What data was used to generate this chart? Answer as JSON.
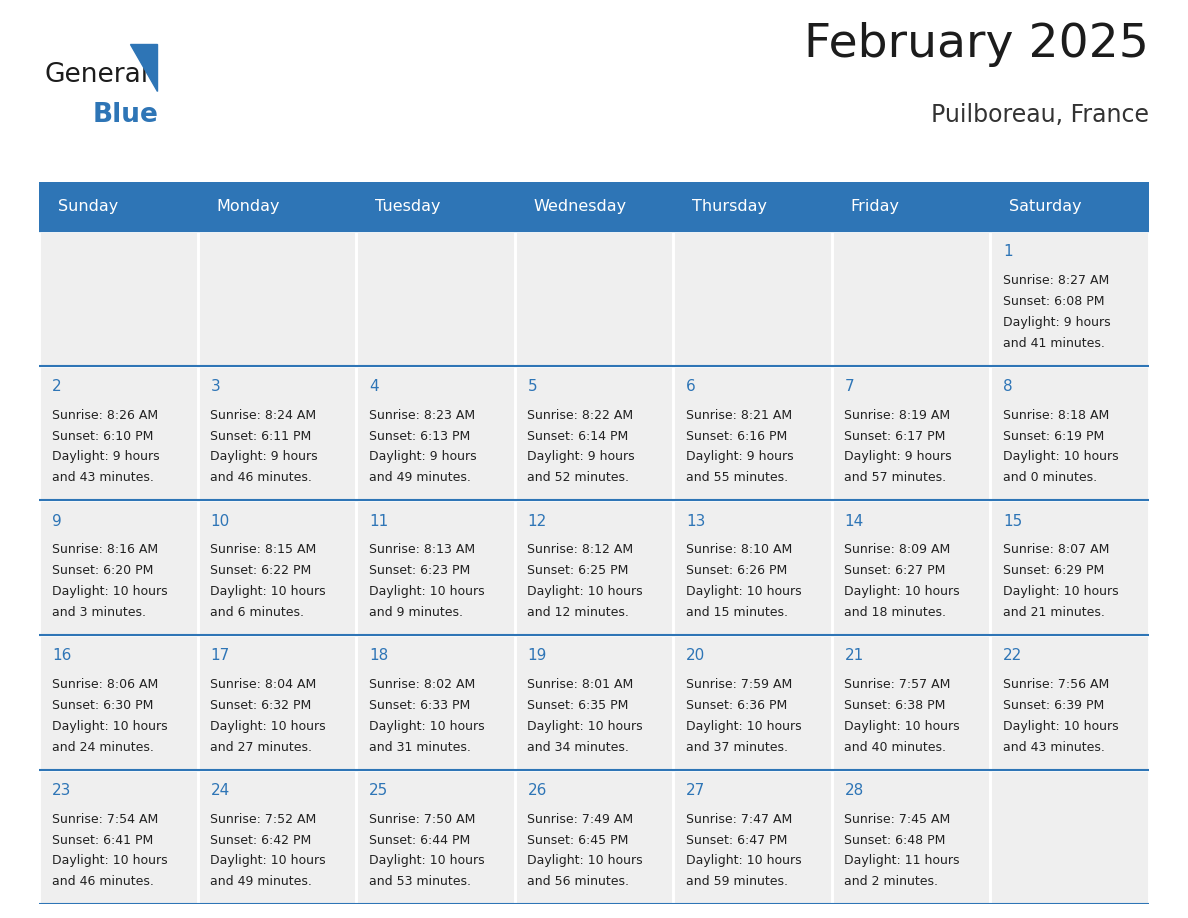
{
  "title": "February 2025",
  "subtitle": "Puilboreau, France",
  "days_of_week": [
    "Sunday",
    "Monday",
    "Tuesday",
    "Wednesday",
    "Thursday",
    "Friday",
    "Saturday"
  ],
  "header_bg_color": "#2e75b6",
  "header_text_color": "#ffffff",
  "cell_bg_color": "#efefef",
  "day_number_color": "#2e75b6",
  "text_color": "#222222",
  "line_color": "#2e75b6",
  "bg_color": "#ffffff",
  "calendar_data": [
    [
      null,
      null,
      null,
      null,
      null,
      null,
      {
        "day": 1,
        "sunrise": "8:27 AM",
        "sunset": "6:08 PM",
        "daylight_l1": "Daylight: 9 hours",
        "daylight_l2": "and 41 minutes."
      }
    ],
    [
      {
        "day": 2,
        "sunrise": "8:26 AM",
        "sunset": "6:10 PM",
        "daylight_l1": "Daylight: 9 hours",
        "daylight_l2": "and 43 minutes."
      },
      {
        "day": 3,
        "sunrise": "8:24 AM",
        "sunset": "6:11 PM",
        "daylight_l1": "Daylight: 9 hours",
        "daylight_l2": "and 46 minutes."
      },
      {
        "day": 4,
        "sunrise": "8:23 AM",
        "sunset": "6:13 PM",
        "daylight_l1": "Daylight: 9 hours",
        "daylight_l2": "and 49 minutes."
      },
      {
        "day": 5,
        "sunrise": "8:22 AM",
        "sunset": "6:14 PM",
        "daylight_l1": "Daylight: 9 hours",
        "daylight_l2": "and 52 minutes."
      },
      {
        "day": 6,
        "sunrise": "8:21 AM",
        "sunset": "6:16 PM",
        "daylight_l1": "Daylight: 9 hours",
        "daylight_l2": "and 55 minutes."
      },
      {
        "day": 7,
        "sunrise": "8:19 AM",
        "sunset": "6:17 PM",
        "daylight_l1": "Daylight: 9 hours",
        "daylight_l2": "and 57 minutes."
      },
      {
        "day": 8,
        "sunrise": "8:18 AM",
        "sunset": "6:19 PM",
        "daylight_l1": "Daylight: 10 hours",
        "daylight_l2": "and 0 minutes."
      }
    ],
    [
      {
        "day": 9,
        "sunrise": "8:16 AM",
        "sunset": "6:20 PM",
        "daylight_l1": "Daylight: 10 hours",
        "daylight_l2": "and 3 minutes."
      },
      {
        "day": 10,
        "sunrise": "8:15 AM",
        "sunset": "6:22 PM",
        "daylight_l1": "Daylight: 10 hours",
        "daylight_l2": "and 6 minutes."
      },
      {
        "day": 11,
        "sunrise": "8:13 AM",
        "sunset": "6:23 PM",
        "daylight_l1": "Daylight: 10 hours",
        "daylight_l2": "and 9 minutes."
      },
      {
        "day": 12,
        "sunrise": "8:12 AM",
        "sunset": "6:25 PM",
        "daylight_l1": "Daylight: 10 hours",
        "daylight_l2": "and 12 minutes."
      },
      {
        "day": 13,
        "sunrise": "8:10 AM",
        "sunset": "6:26 PM",
        "daylight_l1": "Daylight: 10 hours",
        "daylight_l2": "and 15 minutes."
      },
      {
        "day": 14,
        "sunrise": "8:09 AM",
        "sunset": "6:27 PM",
        "daylight_l1": "Daylight: 10 hours",
        "daylight_l2": "and 18 minutes."
      },
      {
        "day": 15,
        "sunrise": "8:07 AM",
        "sunset": "6:29 PM",
        "daylight_l1": "Daylight: 10 hours",
        "daylight_l2": "and 21 minutes."
      }
    ],
    [
      {
        "day": 16,
        "sunrise": "8:06 AM",
        "sunset": "6:30 PM",
        "daylight_l1": "Daylight: 10 hours",
        "daylight_l2": "and 24 minutes."
      },
      {
        "day": 17,
        "sunrise": "8:04 AM",
        "sunset": "6:32 PM",
        "daylight_l1": "Daylight: 10 hours",
        "daylight_l2": "and 27 minutes."
      },
      {
        "day": 18,
        "sunrise": "8:02 AM",
        "sunset": "6:33 PM",
        "daylight_l1": "Daylight: 10 hours",
        "daylight_l2": "and 31 minutes."
      },
      {
        "day": 19,
        "sunrise": "8:01 AM",
        "sunset": "6:35 PM",
        "daylight_l1": "Daylight: 10 hours",
        "daylight_l2": "and 34 minutes."
      },
      {
        "day": 20,
        "sunrise": "7:59 AM",
        "sunset": "6:36 PM",
        "daylight_l1": "Daylight: 10 hours",
        "daylight_l2": "and 37 minutes."
      },
      {
        "day": 21,
        "sunrise": "7:57 AM",
        "sunset": "6:38 PM",
        "daylight_l1": "Daylight: 10 hours",
        "daylight_l2": "and 40 minutes."
      },
      {
        "day": 22,
        "sunrise": "7:56 AM",
        "sunset": "6:39 PM",
        "daylight_l1": "Daylight: 10 hours",
        "daylight_l2": "and 43 minutes."
      }
    ],
    [
      {
        "day": 23,
        "sunrise": "7:54 AM",
        "sunset": "6:41 PM",
        "daylight_l1": "Daylight: 10 hours",
        "daylight_l2": "and 46 minutes."
      },
      {
        "day": 24,
        "sunrise": "7:52 AM",
        "sunset": "6:42 PM",
        "daylight_l1": "Daylight: 10 hours",
        "daylight_l2": "and 49 minutes."
      },
      {
        "day": 25,
        "sunrise": "7:50 AM",
        "sunset": "6:44 PM",
        "daylight_l1": "Daylight: 10 hours",
        "daylight_l2": "and 53 minutes."
      },
      {
        "day": 26,
        "sunrise": "7:49 AM",
        "sunset": "6:45 PM",
        "daylight_l1": "Daylight: 10 hours",
        "daylight_l2": "and 56 minutes."
      },
      {
        "day": 27,
        "sunrise": "7:47 AM",
        "sunset": "6:47 PM",
        "daylight_l1": "Daylight: 10 hours",
        "daylight_l2": "and 59 minutes."
      },
      {
        "day": 28,
        "sunrise": "7:45 AM",
        "sunset": "6:48 PM",
        "daylight_l1": "Daylight: 11 hours",
        "daylight_l2": "and 2 minutes."
      },
      null
    ]
  ],
  "title_fontsize": 34,
  "subtitle_fontsize": 17,
  "header_fontsize": 11.5,
  "day_number_fontsize": 11,
  "cell_text_fontsize": 9
}
